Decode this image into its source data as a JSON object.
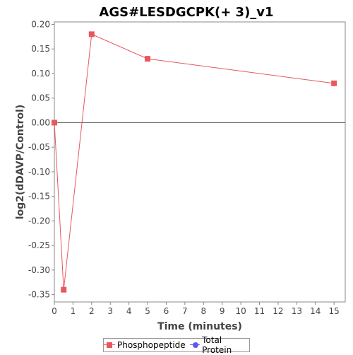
{
  "chart_data": {
    "type": "line",
    "title": "AGS#LESDGCPK(+ 3)_v1",
    "xlabel": "Time (minutes)",
    "ylabel": "log2(dDAVP/Control)",
    "xlim": [
      0,
      15.6
    ],
    "ylim": [
      -0.365,
      0.205
    ],
    "x_ticks": [
      0,
      1,
      2,
      3,
      4,
      5,
      6,
      7,
      8,
      9,
      10,
      11,
      12,
      13,
      14,
      15
    ],
    "y_ticks": [
      0.2,
      0.15,
      0.1,
      0.05,
      0.0,
      -0.05,
      -0.1,
      -0.15,
      -0.2,
      -0.25,
      -0.3,
      -0.35
    ],
    "y_tick_labels": [
      "0.20",
      "0.15",
      "0.10",
      "0.05",
      "0.00",
      "-0.05",
      "-0.10",
      "-0.15",
      "-0.20",
      "-0.25",
      "-0.30",
      "-0.35"
    ],
    "zero_line": true,
    "grid": false,
    "legend_position": "bottom",
    "series": [
      {
        "name": "Phosphopeptide",
        "color": "#e8585c",
        "marker": "square",
        "x": [
          0,
          0.5,
          2,
          5,
          15
        ],
        "y": [
          0.0,
          -0.34,
          0.18,
          0.13,
          0.08
        ]
      }
    ],
    "legend": [
      {
        "label": "Phosphopeptide",
        "color": "#e8585c",
        "marker": "square"
      },
      {
        "label": "Total Protein",
        "color": "#5b5bf0",
        "marker": "circle"
      }
    ]
  }
}
